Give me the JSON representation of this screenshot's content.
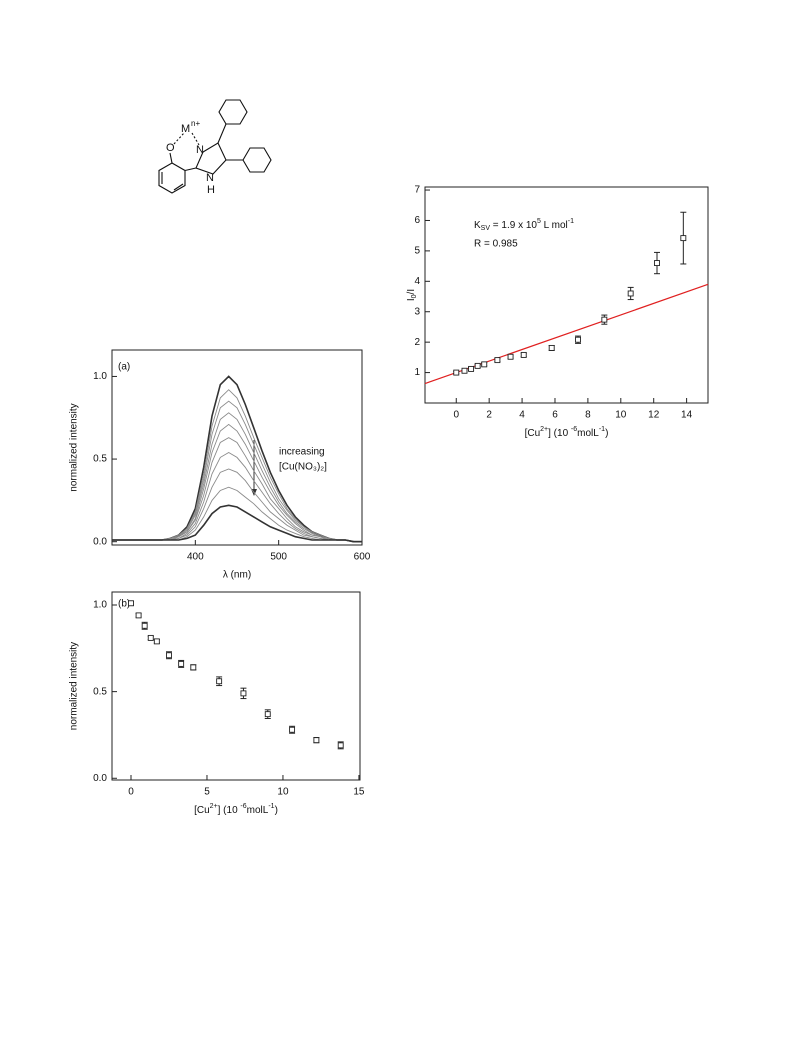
{
  "structure": {
    "labels": [
      "M",
      "n+",
      "O",
      "N",
      "N",
      "H"
    ]
  },
  "chart_data": [
    {
      "type": "line",
      "label": "(a)",
      "x_label": "λ (nm)",
      "y_label": "normalized intensity",
      "annotations": [
        {
          "text": "increasing"
        },
        {
          "text": "[Cu(NO₃)₂]"
        }
      ],
      "x": [
        300,
        310,
        320,
        330,
        340,
        350,
        360,
        370,
        380,
        390,
        400,
        410,
        420,
        430,
        440,
        450,
        460,
        470,
        480,
        490,
        500,
        510,
        520,
        530,
        540,
        550,
        560,
        570,
        580,
        590,
        600
      ],
      "xlim": [
        300,
        600
      ],
      "xticks": [
        400,
        500,
        600
      ],
      "ylim": [
        -0.02,
        1.16
      ],
      "yticks": [
        {
          "value": 0,
          "label": "0.0"
        },
        {
          "value": 0.5,
          "label": "0.5"
        },
        {
          "value": 1,
          "label": "1.0"
        }
      ],
      "series": [
        {
          "color": "#333333",
          "values": [
            0.01,
            0.01,
            0.01,
            0.01,
            0.01,
            0.01,
            0.01,
            0.02,
            0.04,
            0.09,
            0.2,
            0.45,
            0.76,
            0.95,
            1.0,
            0.95,
            0.83,
            0.69,
            0.55,
            0.42,
            0.31,
            0.22,
            0.15,
            0.1,
            0.06,
            0.04,
            0.02,
            0.01,
            0.01,
            0,
            0
          ]
        },
        {
          "color": "#8a8a8a",
          "values": [
            0.01,
            0.01,
            0.01,
            0.01,
            0.01,
            0.01,
            0.01,
            0.02,
            0.04,
            0.08,
            0.18,
            0.41,
            0.7,
            0.87,
            0.92,
            0.87,
            0.76,
            0.63,
            0.51,
            0.39,
            0.29,
            0.2,
            0.14,
            0.09,
            0.06,
            0.04,
            0.02,
            0.01,
            0.01,
            0,
            0
          ]
        },
        {
          "color": "#8a8a8a",
          "values": [
            0.01,
            0.01,
            0.01,
            0.01,
            0.01,
            0.01,
            0.01,
            0.02,
            0.03,
            0.08,
            0.17,
            0.38,
            0.65,
            0.81,
            0.85,
            0.81,
            0.71,
            0.59,
            0.47,
            0.36,
            0.26,
            0.19,
            0.13,
            0.09,
            0.05,
            0.03,
            0.02,
            0.01,
            0.01,
            0,
            0
          ]
        },
        {
          "color": "#8a8a8a",
          "values": [
            0.01,
            0.01,
            0.01,
            0.01,
            0.01,
            0.01,
            0.01,
            0.02,
            0.03,
            0.07,
            0.16,
            0.35,
            0.59,
            0.74,
            0.78,
            0.74,
            0.65,
            0.54,
            0.43,
            0.33,
            0.24,
            0.17,
            0.12,
            0.08,
            0.05,
            0.03,
            0.02,
            0.01,
            0.01,
            0,
            0
          ]
        },
        {
          "color": "#8a8a8a",
          "values": [
            0.01,
            0.01,
            0.01,
            0.01,
            0.01,
            0.01,
            0.01,
            0.01,
            0.03,
            0.06,
            0.14,
            0.32,
            0.54,
            0.67,
            0.71,
            0.67,
            0.59,
            0.49,
            0.39,
            0.3,
            0.22,
            0.16,
            0.11,
            0.07,
            0.04,
            0.03,
            0.01,
            0.01,
            0.01,
            0,
            0
          ]
        },
        {
          "color": "#8a8a8a",
          "values": [
            0.01,
            0.01,
            0.01,
            0.01,
            0.01,
            0.01,
            0.01,
            0.01,
            0.03,
            0.06,
            0.13,
            0.28,
            0.48,
            0.6,
            0.63,
            0.6,
            0.52,
            0.43,
            0.35,
            0.26,
            0.2,
            0.14,
            0.09,
            0.06,
            0.04,
            0.03,
            0.01,
            0.01,
            0.01,
            0,
            0
          ]
        },
        {
          "color": "#8a8a8a",
          "values": [
            0.01,
            0.01,
            0.01,
            0.01,
            0.01,
            0.01,
            0.01,
            0.01,
            0.02,
            0.05,
            0.11,
            0.24,
            0.41,
            0.51,
            0.54,
            0.51,
            0.45,
            0.37,
            0.3,
            0.23,
            0.17,
            0.12,
            0.08,
            0.05,
            0.03,
            0.02,
            0.01,
            0.01,
            0.01,
            0,
            0
          ]
        },
        {
          "color": "#8a8a8a",
          "values": [
            0.01,
            0.01,
            0.01,
            0.01,
            0.01,
            0.01,
            0.01,
            0.01,
            0.02,
            0.04,
            0.09,
            0.2,
            0.33,
            0.42,
            0.44,
            0.42,
            0.37,
            0.3,
            0.24,
            0.18,
            0.14,
            0.1,
            0.07,
            0.04,
            0.03,
            0.02,
            0.01,
            0.01,
            0.01,
            0,
            0
          ]
        },
        {
          "color": "#8a8a8a",
          "values": [
            0.01,
            0.01,
            0.01,
            0.01,
            0.01,
            0.01,
            0.01,
            0.01,
            0.01,
            0.03,
            0.07,
            0.15,
            0.25,
            0.31,
            0.33,
            0.31,
            0.27,
            0.23,
            0.18,
            0.14,
            0.1,
            0.07,
            0.05,
            0.03,
            0.02,
            0.01,
            0.01,
            0.01,
            0.01,
            0,
            0
          ]
        },
        {
          "color": "#333333",
          "values": [
            0.01,
            0.01,
            0.01,
            0.01,
            0.01,
            0.01,
            0.01,
            0.01,
            0.01,
            0.02,
            0.04,
            0.1,
            0.17,
            0.21,
            0.22,
            0.21,
            0.18,
            0.15,
            0.12,
            0.09,
            0.07,
            0.05,
            0.03,
            0.02,
            0.01,
            0.01,
            0.01,
            0.01,
            0.01,
            0,
            0
          ]
        }
      ]
    },
    {
      "type": "scatter",
      "label": "(b)",
      "x_label": [
        {
          "text": "[Cu"
        },
        {
          "text": "2+",
          "shift": "sup"
        },
        {
          "text": "] (10 "
        },
        {
          "text": "-6",
          "shift": "sup"
        },
        {
          "text": "molL"
        },
        {
          "text": "-1",
          "shift": "sup"
        },
        {
          "text": ")"
        }
      ],
      "y_label": "normalized intensity",
      "xlim": [
        -1.25,
        15.07
      ],
      "xticks": [
        0,
        5,
        10,
        15
      ],
      "ylim": [
        -0.01,
        1.075
      ],
      "yticks": [
        {
          "value": 0,
          "label": "0.0"
        },
        {
          "value": 0.5,
          "label": "0.5"
        },
        {
          "value": 1,
          "label": "1.0"
        }
      ],
      "series": [
        {
          "color": "#222222",
          "x": [
            0,
            0.5,
            0.9,
            1.3,
            1.7,
            2.5,
            3.3,
            4.1,
            5.8,
            7.4,
            9.0,
            10.6,
            12.2,
            13.8
          ],
          "values": [
            1.01,
            0.94,
            0.88,
            0.81,
            0.79,
            0.71,
            0.66,
            0.64,
            0.56,
            0.49,
            0.37,
            0.28,
            0.22,
            0.19
          ],
          "errors": [
            0.01,
            0.01,
            0.02,
            0.01,
            0.01,
            0.02,
            0.02,
            0.015,
            0.025,
            0.03,
            0.025,
            0.02,
            0.015,
            0.02
          ]
        }
      ]
    },
    {
      "type": "scatter",
      "x_label": [
        {
          "text": "[Cu"
        },
        {
          "text": "2+",
          "shift": "sup"
        },
        {
          "text": "] (10 "
        },
        {
          "text": "-6",
          "shift": "sup"
        },
        {
          "text": "molL"
        },
        {
          "text": "-1",
          "shift": "sup"
        },
        {
          "text": ")"
        }
      ],
      "y_label": [
        {
          "text": "I"
        },
        {
          "text": "0",
          "shift": "sub"
        },
        {
          "text": "/I"
        }
      ],
      "annotations": [
        {
          "text": [
            {
              "text": "K"
            },
            {
              "text": "SV",
              "shift": "sub"
            },
            {
              "text": " = 1.9 x 10"
            },
            {
              "text": "5",
              "shift": "sup"
            },
            {
              "text": " L mol"
            },
            {
              "text": "-1",
              "shift": "sup"
            }
          ]
        },
        {
          "text": "R = 0.985"
        }
      ],
      "xlim": [
        -1.9,
        15.3
      ],
      "xticks": [
        0,
        2,
        4,
        6,
        8,
        10,
        12,
        14
      ],
      "ylim": [
        0,
        7.1
      ],
      "yticks": [
        1,
        2,
        3,
        4,
        5,
        6,
        7
      ],
      "series": [
        {
          "color": "#222222",
          "x": [
            0,
            0.5,
            0.9,
            1.3,
            1.7,
            2.5,
            3.3,
            4.1,
            5.8,
            7.4,
            9.0,
            10.6,
            12.2,
            13.8
          ],
          "values": [
            1.0,
            1.06,
            1.12,
            1.22,
            1.27,
            1.41,
            1.52,
            1.58,
            1.81,
            2.08,
            2.74,
            3.6,
            4.6,
            5.42
          ],
          "errors": [
            0.04,
            0.04,
            0.05,
            0.05,
            0.05,
            0.05,
            0.05,
            0.06,
            0.08,
            0.12,
            0.15,
            0.2,
            0.35,
            0.85
          ]
        }
      ],
      "fit": {
        "color": "#e02020",
        "x": [
          -1.9,
          15.3
        ],
        "values": [
          0.64,
          3.9
        ]
      }
    }
  ]
}
